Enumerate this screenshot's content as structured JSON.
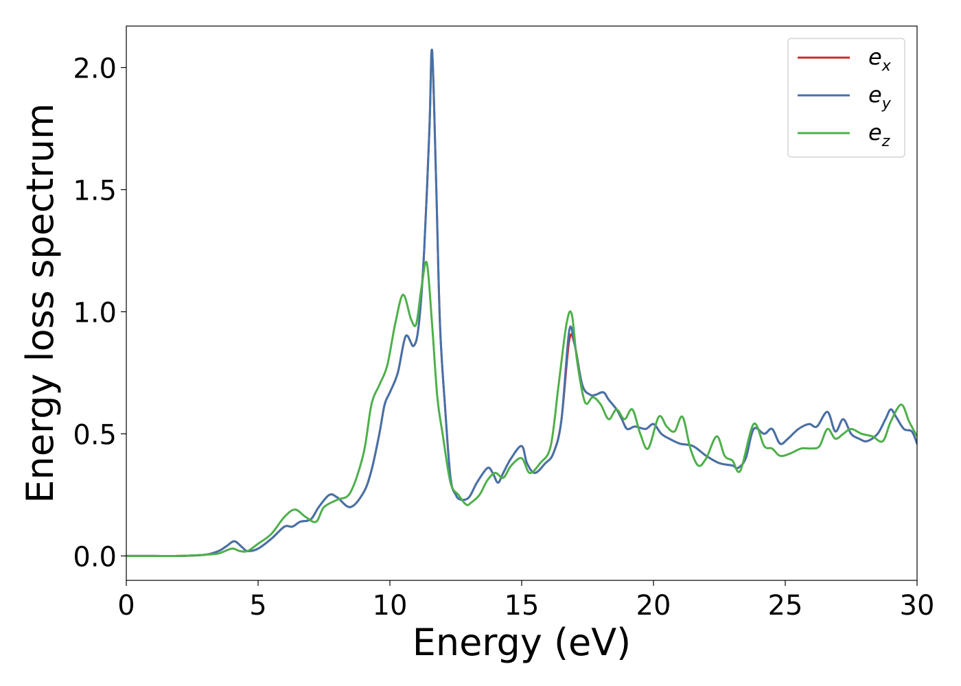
{
  "chart_data": {
    "type": "line",
    "title": "",
    "xlabel": "Energy (eV)",
    "ylabel": "Energy loss spectrum",
    "xlim": [
      0,
      30
    ],
    "ylim": [
      -0.1,
      2.17
    ],
    "xticks": [
      0,
      5,
      10,
      15,
      20,
      25,
      30
    ],
    "xtick_labels": [
      "0",
      "5",
      "10",
      "15",
      "20",
      "25",
      "30"
    ],
    "yticks": [
      0.0,
      0.5,
      1.0,
      1.5,
      2.0
    ],
    "ytick_labels": [
      "0.0",
      "0.5",
      "1.0",
      "1.5",
      "2.0"
    ],
    "grid": false,
    "legend_position": "top-right",
    "series": [
      {
        "name": "e_x",
        "legend_base": "e",
        "legend_sub": "x",
        "color": "#d62728",
        "x": [
          0,
          1,
          2,
          3,
          3.5,
          3.8,
          4.1,
          4.4,
          4.6,
          5.0,
          5.5,
          6.0,
          6.3,
          6.6,
          7.0,
          7.3,
          7.7,
          8.0,
          8.5,
          9.0,
          9.3,
          9.6,
          9.8,
          10.0,
          10.3,
          10.6,
          10.9,
          11.1,
          11.3,
          11.5,
          11.6,
          11.75,
          11.9,
          12.1,
          12.3,
          12.5,
          12.7,
          13.0,
          13.3,
          13.7,
          13.9,
          14.1,
          14.3,
          14.6,
          15.0,
          15.2,
          15.5,
          15.9,
          16.2,
          16.5,
          16.8,
          17.0,
          17.3,
          17.6,
          17.8,
          18.1,
          18.3,
          18.6,
          18.8,
          19.0,
          19.3,
          19.7,
          20.0,
          20.3,
          20.6,
          21.0,
          21.5,
          22.0,
          22.5,
          23.0,
          23.2,
          23.5,
          23.8,
          24.2,
          24.5,
          24.8,
          25.1,
          25.5,
          25.9,
          26.2,
          26.6,
          26.9,
          27.2,
          27.5,
          27.8,
          28.1,
          28.5,
          28.8,
          29.0,
          29.2,
          29.5,
          29.8,
          30.0
        ],
        "y": [
          0,
          0.0,
          0.0,
          0.005,
          0.02,
          0.04,
          0.06,
          0.035,
          0.02,
          0.03,
          0.07,
          0.12,
          0.12,
          0.14,
          0.15,
          0.2,
          0.25,
          0.24,
          0.2,
          0.26,
          0.35,
          0.5,
          0.62,
          0.67,
          0.75,
          0.9,
          0.86,
          0.95,
          1.25,
          1.75,
          2.07,
          1.55,
          0.95,
          0.6,
          0.32,
          0.25,
          0.23,
          0.24,
          0.3,
          0.36,
          0.34,
          0.3,
          0.34,
          0.4,
          0.45,
          0.38,
          0.34,
          0.38,
          0.42,
          0.55,
          0.88,
          0.87,
          0.7,
          0.66,
          0.66,
          0.67,
          0.64,
          0.6,
          0.56,
          0.52,
          0.53,
          0.52,
          0.54,
          0.5,
          0.48,
          0.46,
          0.45,
          0.41,
          0.38,
          0.37,
          0.36,
          0.4,
          0.52,
          0.5,
          0.52,
          0.46,
          0.48,
          0.52,
          0.54,
          0.53,
          0.59,
          0.51,
          0.56,
          0.5,
          0.48,
          0.47,
          0.5,
          0.56,
          0.6,
          0.57,
          0.52,
          0.51,
          0.46
        ]
      },
      {
        "name": "e_y",
        "legend_base": "e",
        "legend_sub": "y",
        "color": "#4472a8",
        "x": [
          0,
          1,
          2,
          3,
          3.5,
          3.8,
          4.1,
          4.4,
          4.6,
          5.0,
          5.5,
          6.0,
          6.3,
          6.6,
          7.0,
          7.3,
          7.7,
          8.0,
          8.5,
          9.0,
          9.3,
          9.6,
          9.8,
          10.0,
          10.3,
          10.6,
          10.9,
          11.1,
          11.3,
          11.5,
          11.6,
          11.75,
          11.9,
          12.1,
          12.3,
          12.5,
          12.7,
          13.0,
          13.3,
          13.7,
          13.9,
          14.1,
          14.3,
          14.6,
          15.0,
          15.2,
          15.5,
          15.9,
          16.2,
          16.5,
          16.8,
          17.0,
          17.3,
          17.6,
          17.8,
          18.1,
          18.3,
          18.6,
          18.8,
          19.0,
          19.3,
          19.7,
          20.0,
          20.3,
          20.6,
          21.0,
          21.5,
          22.0,
          22.5,
          23.0,
          23.2,
          23.5,
          23.8,
          24.2,
          24.5,
          24.8,
          25.1,
          25.5,
          25.9,
          26.2,
          26.6,
          26.9,
          27.2,
          27.5,
          27.8,
          28.1,
          28.5,
          28.8,
          29.0,
          29.2,
          29.5,
          29.8,
          30.0
        ],
        "y": [
          0,
          0.0,
          0.0,
          0.005,
          0.02,
          0.04,
          0.06,
          0.035,
          0.02,
          0.03,
          0.07,
          0.12,
          0.12,
          0.14,
          0.15,
          0.2,
          0.25,
          0.24,
          0.2,
          0.26,
          0.35,
          0.5,
          0.62,
          0.67,
          0.75,
          0.9,
          0.86,
          0.95,
          1.25,
          1.75,
          2.07,
          1.55,
          0.95,
          0.6,
          0.32,
          0.25,
          0.23,
          0.24,
          0.3,
          0.36,
          0.34,
          0.3,
          0.34,
          0.4,
          0.45,
          0.38,
          0.34,
          0.38,
          0.42,
          0.55,
          0.92,
          0.87,
          0.7,
          0.66,
          0.66,
          0.67,
          0.64,
          0.6,
          0.56,
          0.52,
          0.53,
          0.52,
          0.54,
          0.5,
          0.48,
          0.46,
          0.45,
          0.41,
          0.38,
          0.37,
          0.36,
          0.4,
          0.52,
          0.5,
          0.52,
          0.46,
          0.48,
          0.52,
          0.54,
          0.53,
          0.59,
          0.51,
          0.56,
          0.5,
          0.48,
          0.47,
          0.5,
          0.56,
          0.6,
          0.57,
          0.52,
          0.51,
          0.46
        ]
      },
      {
        "name": "e_z",
        "legend_base": "e",
        "legend_sub": "z",
        "color": "#4daf4a",
        "x": [
          0,
          1,
          2,
          3,
          3.5,
          4.0,
          4.3,
          4.6,
          5.0,
          5.5,
          6.0,
          6.4,
          6.8,
          7.2,
          7.5,
          8.0,
          8.5,
          9.0,
          9.3,
          9.6,
          9.9,
          10.2,
          10.5,
          10.8,
          11.0,
          11.2,
          11.4,
          11.6,
          11.8,
          12.0,
          12.3,
          12.6,
          12.9,
          13.1,
          13.4,
          13.7,
          14.0,
          14.3,
          14.6,
          15.0,
          15.3,
          15.7,
          16.1,
          16.4,
          16.7,
          16.9,
          17.1,
          17.4,
          17.7,
          18.0,
          18.3,
          18.6,
          18.9,
          19.2,
          19.5,
          19.8,
          20.2,
          20.5,
          20.8,
          21.1,
          21.4,
          21.7,
          22.0,
          22.4,
          22.7,
          23.0,
          23.3,
          23.8,
          24.2,
          24.5,
          24.8,
          25.2,
          25.6,
          26.0,
          26.3,
          26.6,
          26.9,
          27.2,
          27.5,
          27.9,
          28.3,
          28.7,
          29.0,
          29.4,
          29.7,
          30.0
        ],
        "y": [
          0,
          0.0,
          0.0,
          0.005,
          0.01,
          0.03,
          0.02,
          0.02,
          0.05,
          0.09,
          0.16,
          0.19,
          0.16,
          0.14,
          0.2,
          0.23,
          0.26,
          0.42,
          0.62,
          0.7,
          0.78,
          0.95,
          1.07,
          0.97,
          0.95,
          1.1,
          1.2,
          0.95,
          0.65,
          0.5,
          0.3,
          0.25,
          0.21,
          0.22,
          0.25,
          0.31,
          0.34,
          0.32,
          0.37,
          0.4,
          0.34,
          0.38,
          0.45,
          0.7,
          0.95,
          0.99,
          0.8,
          0.63,
          0.65,
          0.62,
          0.56,
          0.6,
          0.56,
          0.6,
          0.5,
          0.44,
          0.57,
          0.53,
          0.51,
          0.57,
          0.44,
          0.37,
          0.4,
          0.49,
          0.41,
          0.39,
          0.35,
          0.54,
          0.45,
          0.44,
          0.41,
          0.42,
          0.44,
          0.44,
          0.45,
          0.52,
          0.48,
          0.5,
          0.52,
          0.5,
          0.49,
          0.47,
          0.55,
          0.62,
          0.55,
          0.49
        ]
      }
    ]
  }
}
